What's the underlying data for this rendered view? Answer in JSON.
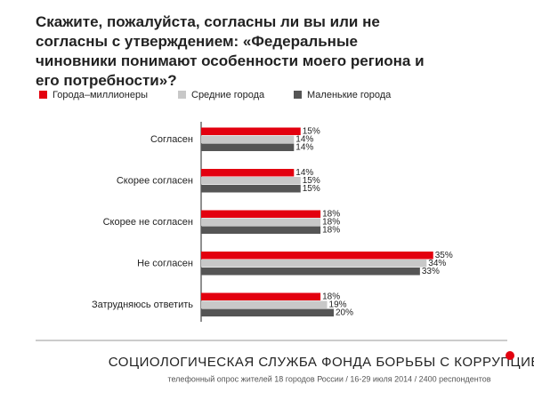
{
  "chart_data": {
    "type": "bar",
    "orientation": "horizontal",
    "title": "Скажите, пожалуйста, согласны ли вы или не согласны с утверждением: «Федеральные чиновники понимают особенности моего региона и его потребности»?",
    "categories": [
      "Согласен",
      "Скорее согласен",
      "Скорее не согласен",
      "Не согласен",
      "Затрудняюсь ответить"
    ],
    "series": [
      {
        "name": "Города–миллионеры",
        "color": "#e3000f",
        "values": [
          15,
          14,
          18,
          35,
          18
        ],
        "value_labels": [
          "15%",
          "14%",
          "18%",
          "35%",
          "18%"
        ]
      },
      {
        "name": "Средние города",
        "color": "#c8c8c8",
        "values": [
          14,
          15,
          18,
          34,
          19
        ],
        "value_labels": [
          "14%",
          "15%",
          "18%",
          "34%",
          "19%"
        ]
      },
      {
        "name": "Маленькие города",
        "color": "#555555",
        "values": [
          14,
          15,
          18,
          33,
          20
        ],
        "value_labels": [
          "14%",
          "15%",
          "18%",
          "33%",
          "20%"
        ]
      }
    ],
    "footer": "СОЦИОЛОГИЧЕСКАЯ СЛУЖБА ФОНДА БОРЬБЫ С КОРРУПЦИЕЙ",
    "note": "телефонный опрос жителей 18 городов России / 16-29 июля 2014 / 2400 респондентов"
  }
}
